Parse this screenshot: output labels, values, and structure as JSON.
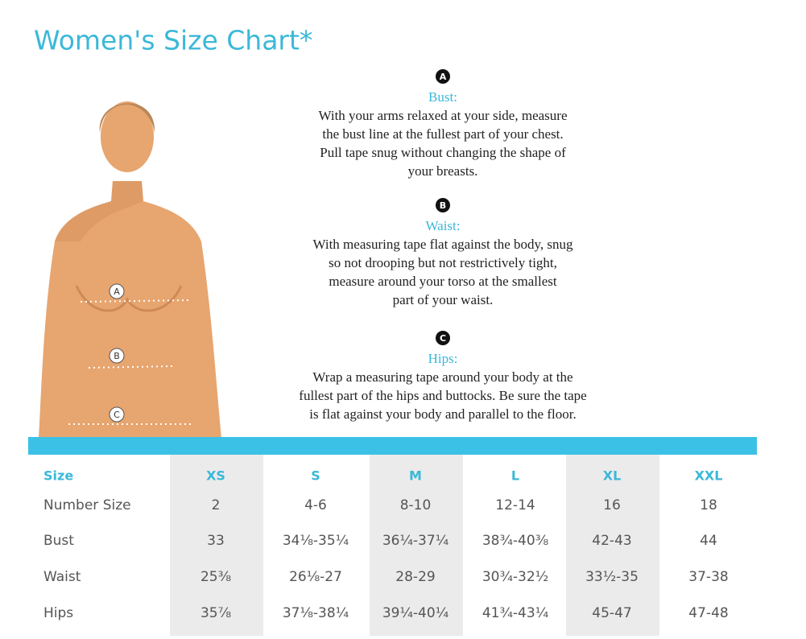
{
  "header": {
    "title": "Women's Size Chart*"
  },
  "figure": {
    "markers": [
      "A",
      "B",
      "C"
    ]
  },
  "sections": [
    {
      "letter": "A",
      "heading": "Bust:",
      "lines": [
        "With your arms relaxed at your side, measure",
        "the bust line at the fullest part of your chest.",
        "Pull tape snug without changing the shape of",
        "your breasts."
      ]
    },
    {
      "letter": "B",
      "heading": "Waist:",
      "lines": [
        "With measuring tape flat against the body, snug",
        "so not drooping but not restrictively tight,",
        "measure around your torso at the smallest",
        "part of your waist."
      ]
    },
    {
      "letter": "C",
      "heading": "Hips:",
      "lines": [
        "Wrap a measuring tape around your body at the",
        "fullest part of the hips and buttocks. Be sure the tape",
        "is flat against your body and parallel to the floor."
      ]
    }
  ],
  "table": {
    "header": [
      "Size",
      "XS",
      "S",
      "M",
      "L",
      "XL",
      "XXL"
    ],
    "rows": [
      [
        "Number Size",
        "2",
        "4-6",
        "8-10",
        "12-14",
        "16",
        "18"
      ],
      [
        "Bust",
        "33",
        "34⅛-35¼",
        "36¼-37¼",
        "38¾-40⅜",
        "42-43",
        "44"
      ],
      [
        "Waist",
        "25⅜",
        "26⅛-27",
        "28-29",
        "30¾-32½",
        "33½-35",
        "37-38"
      ],
      [
        "Hips",
        "35⅞",
        "37⅛-38¼",
        "39¼-40¼",
        "41¾-43¼",
        "45-47",
        "47-48"
      ]
    ]
  }
}
